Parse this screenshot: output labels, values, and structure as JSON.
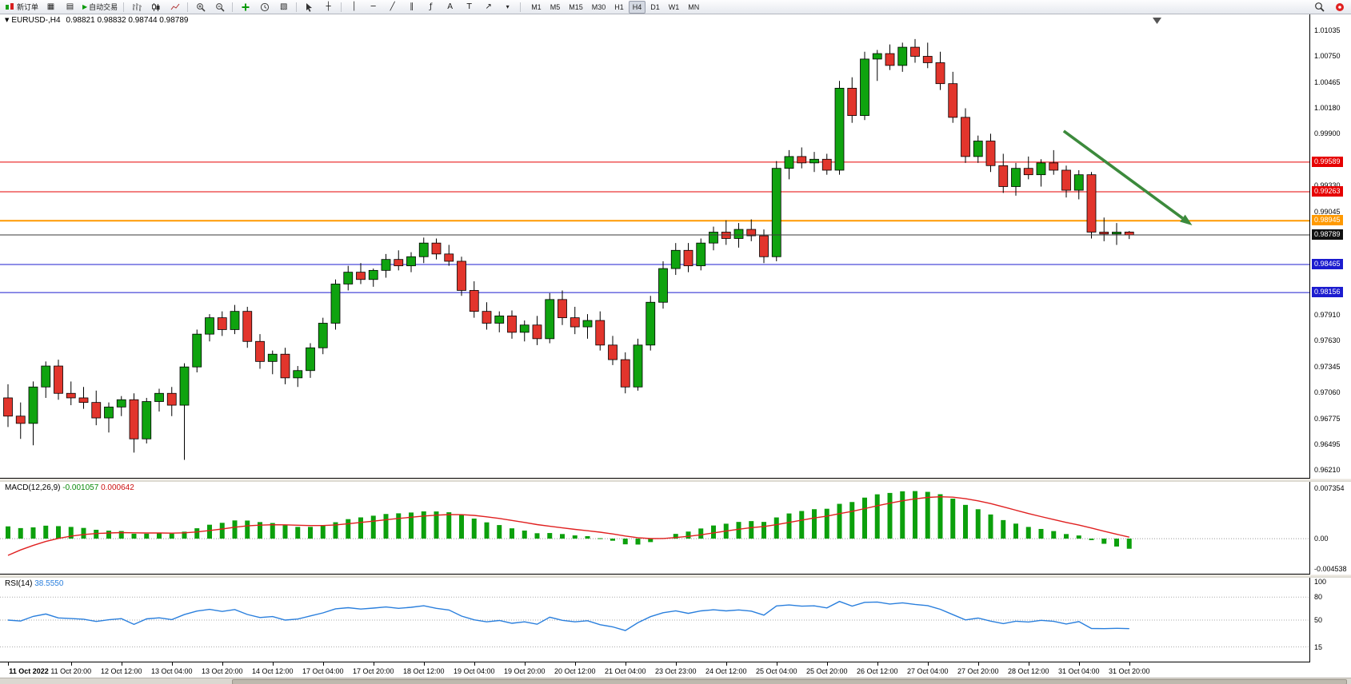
{
  "toolbar": {
    "new_order_label": "新订单",
    "auto_trading_label": "自动交易",
    "timeframes": [
      "M1",
      "M5",
      "M15",
      "M30",
      "H1",
      "H4",
      "D1",
      "W1",
      "MN"
    ],
    "active_timeframe": "H4",
    "glyphs": {
      "charts_tile": "▦",
      "data_window": "▤",
      "play": "▶",
      "template": "▧",
      "crosshair": "┼",
      "vertical_line": "│",
      "horizontal_line": "─",
      "trendline": "╱",
      "channel": "∥",
      "fibonacci": "ƒ",
      "text": "A",
      "text_label": "T",
      "arrows": "↗",
      "dropdown": "▾"
    }
  },
  "chart": {
    "expand_glyph": "▼",
    "symbol_tf": "EURUSD-,H4",
    "ohlc": "0.98821 0.98832 0.98744 0.98789"
  },
  "macd": {
    "name": "MACD(12,26,9)",
    "main_value": "-0.001057",
    "signal_value": "0.000642",
    "axis_top": "0.007354",
    "axis_zero": "0.00",
    "axis_bottom": "-0.004538"
  },
  "rsi": {
    "name": "RSI(14)",
    "value": "38.5550",
    "axis_top": "100"
  },
  "chart_data": {
    "type": "candlestick",
    "symbol": "EURUSD-",
    "timeframe": "H4",
    "current_bar": {
      "open": 0.98821,
      "high": 0.98832,
      "low": 0.98744,
      "close": 0.98789
    },
    "colors": {
      "up": "#0fa30f",
      "down": "#e2352c",
      "wick": "#000000",
      "macd_hist": "#0ca00c",
      "macd_signal": "#e02020",
      "rsi": "#2a7fdd"
    },
    "y_axis": {
      "max": 1.01035,
      "min": 0.9621,
      "step": 0.00285,
      "labels": [
        "1.01035",
        "1.00750",
        "1.00465",
        "1.00180",
        "0.99900",
        "0.99330",
        "0.99045",
        "0.97910",
        "0.97630",
        "0.97345",
        "0.97060",
        "0.96775",
        "0.96495",
        "0.96210"
      ]
    },
    "hlines": [
      {
        "price": 0.99589,
        "color": "#e60000",
        "width": 1,
        "badge": "#e60000"
      },
      {
        "price": 0.99263,
        "color": "#e60000",
        "width": 1,
        "badge": "#e60000"
      },
      {
        "price": 0.98945,
        "color": "#ff9900",
        "width": 2,
        "badge": "#ff9900"
      },
      {
        "price": 0.98465,
        "color": "#1c1ccf",
        "width": 1,
        "badge": "#1c1ccf"
      },
      {
        "price": 0.98156,
        "color": "#1c1ccf",
        "width": 1,
        "badge": "#1c1ccf"
      }
    ],
    "current_price": {
      "price": 0.98789,
      "color": "#3a3a3a",
      "badge": "#111111"
    },
    "trend_arrow": {
      "from_bar": 83.8,
      "from_price": 0.9993,
      "to_bar": 94,
      "to_price": 0.98895,
      "color": "#3c8a3c"
    },
    "candles": [
      [
        0.97,
        0.9715,
        0.9668,
        0.968
      ],
      [
        0.968,
        0.9695,
        0.9655,
        0.9672
      ],
      [
        0.9672,
        0.9718,
        0.9648,
        0.9712
      ],
      [
        0.9712,
        0.974,
        0.97,
        0.9735
      ],
      [
        0.9735,
        0.9742,
        0.9698,
        0.9705
      ],
      [
        0.9705,
        0.9718,
        0.9692,
        0.97
      ],
      [
        0.97,
        0.9712,
        0.9688,
        0.9695
      ],
      [
        0.9695,
        0.9708,
        0.967,
        0.9678
      ],
      [
        0.9678,
        0.9695,
        0.9662,
        0.969
      ],
      [
        0.969,
        0.9702,
        0.968,
        0.9698
      ],
      [
        0.9698,
        0.9705,
        0.964,
        0.9655
      ],
      [
        0.9655,
        0.97,
        0.965,
        0.9696
      ],
      [
        0.9696,
        0.971,
        0.9685,
        0.9705
      ],
      [
        0.9705,
        0.9712,
        0.968,
        0.9692
      ],
      [
        0.9692,
        0.9738,
        0.9632,
        0.9734
      ],
      [
        0.9734,
        0.9775,
        0.9728,
        0.977
      ],
      [
        0.977,
        0.9792,
        0.9762,
        0.9788
      ],
      [
        0.9788,
        0.9795,
        0.9768,
        0.9775
      ],
      [
        0.9775,
        0.9802,
        0.977,
        0.9795
      ],
      [
        0.9795,
        0.98,
        0.9755,
        0.9762
      ],
      [
        0.9762,
        0.977,
        0.9732,
        0.974
      ],
      [
        0.974,
        0.9752,
        0.9726,
        0.9748
      ],
      [
        0.9748,
        0.9755,
        0.9715,
        0.9722
      ],
      [
        0.9722,
        0.9735,
        0.9712,
        0.973
      ],
      [
        0.973,
        0.976,
        0.9722,
        0.9755
      ],
      [
        0.9755,
        0.9788,
        0.9748,
        0.9782
      ],
      [
        0.9782,
        0.983,
        0.9775,
        0.9825
      ],
      [
        0.9825,
        0.9845,
        0.9818,
        0.9838
      ],
      [
        0.9838,
        0.9848,
        0.9825,
        0.983
      ],
      [
        0.983,
        0.9842,
        0.9822,
        0.984
      ],
      [
        0.984,
        0.9858,
        0.9832,
        0.9852
      ],
      [
        0.9852,
        0.9862,
        0.984,
        0.9845
      ],
      [
        0.9845,
        0.986,
        0.9838,
        0.9855
      ],
      [
        0.9855,
        0.9876,
        0.9848,
        0.987
      ],
      [
        0.987,
        0.9875,
        0.9852,
        0.9858
      ],
      [
        0.9858,
        0.9868,
        0.9845,
        0.985
      ],
      [
        0.985,
        0.9855,
        0.9812,
        0.9818
      ],
      [
        0.9818,
        0.9828,
        0.9788,
        0.9795
      ],
      [
        0.9795,
        0.9805,
        0.9775,
        0.9782
      ],
      [
        0.9782,
        0.9795,
        0.9772,
        0.979
      ],
      [
        0.979,
        0.9796,
        0.9765,
        0.9772
      ],
      [
        0.9772,
        0.9785,
        0.9762,
        0.978
      ],
      [
        0.978,
        0.979,
        0.9758,
        0.9765
      ],
      [
        0.9765,
        0.9815,
        0.976,
        0.9808
      ],
      [
        0.9808,
        0.9818,
        0.978,
        0.9788
      ],
      [
        0.9788,
        0.98,
        0.977,
        0.9778
      ],
      [
        0.9778,
        0.9792,
        0.9765,
        0.9785
      ],
      [
        0.9785,
        0.9795,
        0.9752,
        0.9758
      ],
      [
        0.9758,
        0.9768,
        0.9736,
        0.9742
      ],
      [
        0.9742,
        0.975,
        0.9705,
        0.9712
      ],
      [
        0.9712,
        0.9765,
        0.9708,
        0.9758
      ],
      [
        0.9758,
        0.9812,
        0.9752,
        0.9805
      ],
      [
        0.9805,
        0.985,
        0.9798,
        0.9842
      ],
      [
        0.9842,
        0.987,
        0.9835,
        0.9862
      ],
      [
        0.9862,
        0.987,
        0.9838,
        0.9845
      ],
      [
        0.9845,
        0.9875,
        0.984,
        0.987
      ],
      [
        0.987,
        0.9888,
        0.9862,
        0.9882
      ],
      [
        0.9882,
        0.9895,
        0.9868,
        0.9875
      ],
      [
        0.9875,
        0.9892,
        0.9865,
        0.9885
      ],
      [
        0.9885,
        0.9896,
        0.9872,
        0.9878
      ],
      [
        0.9878,
        0.9885,
        0.9848,
        0.9855
      ],
      [
        0.9855,
        0.996,
        0.985,
        0.9952
      ],
      [
        0.9952,
        0.9972,
        0.994,
        0.9965
      ],
      [
        0.9965,
        0.9975,
        0.9952,
        0.9958
      ],
      [
        0.9958,
        0.997,
        0.9948,
        0.9962
      ],
      [
        0.9962,
        0.9968,
        0.9945,
        0.995
      ],
      [
        0.995,
        1.0048,
        0.9945,
        1.004
      ],
      [
        1.004,
        1.0052,
        1.0002,
        1.001
      ],
      [
        1.001,
        1.008,
        1.0005,
        1.0072
      ],
      [
        1.0072,
        1.0082,
        1.0048,
        1.0078
      ],
      [
        1.0078,
        1.0088,
        1.006,
        1.0065
      ],
      [
        1.0065,
        1.009,
        1.0058,
        1.0085
      ],
      [
        1.0085,
        1.0094,
        1.0068,
        1.0075
      ],
      [
        1.0075,
        1.009,
        1.0062,
        1.0068
      ],
      [
        1.0068,
        1.008,
        1.0038,
        1.0045
      ],
      [
        1.0045,
        1.0058,
        1.0002,
        1.0008
      ],
      [
        1.0008,
        1.0018,
        0.9958,
        0.9965
      ],
      [
        0.9965,
        0.9988,
        0.9958,
        0.9982
      ],
      [
        0.9982,
        0.999,
        0.9948,
        0.9955
      ],
      [
        0.9955,
        0.9968,
        0.9925,
        0.9932
      ],
      [
        0.9932,
        0.9958,
        0.9922,
        0.9952
      ],
      [
        0.9952,
        0.9965,
        0.994,
        0.9945
      ],
      [
        0.9945,
        0.9962,
        0.9932,
        0.9958
      ],
      [
        0.9958,
        0.9972,
        0.9945,
        0.995
      ],
      [
        0.995,
        0.9955,
        0.992,
        0.9928
      ],
      [
        0.9928,
        0.995,
        0.9918,
        0.9945
      ],
      [
        0.9945,
        0.9948,
        0.9875,
        0.9882
      ],
      [
        0.9882,
        0.9898,
        0.9872,
        0.988
      ],
      [
        0.988,
        0.9892,
        0.9868,
        0.9882
      ],
      [
        0.98821,
        0.98832,
        0.98744,
        0.98789
      ]
    ],
    "x_labels": [
      {
        "i": 0,
        "t": "11 Oct 2022"
      },
      {
        "i": 5,
        "t": "11 Oct 20:00"
      },
      {
        "i": 9,
        "t": "12 Oct 12:00"
      },
      {
        "i": 13,
        "t": "13 Oct 04:00"
      },
      {
        "i": 17,
        "t": "13 Oct 20:00"
      },
      {
        "i": 21,
        "t": "14 Oct 12:00"
      },
      {
        "i": 25,
        "t": "17 Oct 04:00"
      },
      {
        "i": 29,
        "t": "17 Oct 20:00"
      },
      {
        "i": 33,
        "t": "18 Oct 12:00"
      },
      {
        "i": 37,
        "t": "19 Oct 04:00"
      },
      {
        "i": 41,
        "t": "19 Oct 20:00"
      },
      {
        "i": 45,
        "t": "20 Oct 12:00"
      },
      {
        "i": 49,
        "t": "21 Oct 04:00"
      },
      {
        "i": 53,
        "t": "23 Oct 23:00"
      },
      {
        "i": 57,
        "t": "24 Oct 12:00"
      },
      {
        "i": 61,
        "t": "25 Oct 04:00"
      },
      {
        "i": 65,
        "t": "25 Oct 20:00"
      },
      {
        "i": 69,
        "t": "26 Oct 12:00"
      },
      {
        "i": 73,
        "t": "27 Oct 04:00"
      },
      {
        "i": 77,
        "t": "27 Oct 20:00"
      },
      {
        "i": 81,
        "t": "28 Oct 12:00"
      },
      {
        "i": 85,
        "t": "31 Oct 04:00"
      },
      {
        "i": 89,
        "t": "31 Oct 20:00"
      }
    ],
    "indicators": {
      "macd": {
        "fast": 12,
        "slow": 26,
        "signal": 9,
        "main_value": -0.001057,
        "signal_value": 0.000642,
        "axis_max": 0.007354,
        "axis_min": -0.004538,
        "seed_fast": 0.0008,
        "seed_slow": -0.0012,
        "seed_signal": -0.0035
      },
      "rsi": {
        "period": 14,
        "value": 38.555,
        "levels": [
          80,
          50,
          15
        ],
        "scale_max": 100,
        "scale_min": 0
      }
    }
  }
}
